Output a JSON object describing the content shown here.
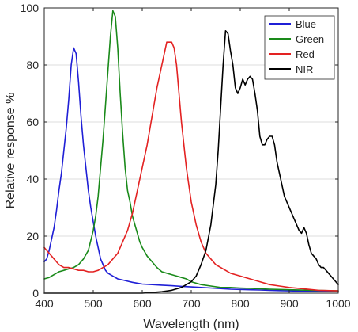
{
  "chart_data": {
    "type": "line",
    "xlabel": "Wavelength (nm)",
    "ylabel": "Relative response %",
    "xlim": [
      400,
      1000
    ],
    "ylim": [
      0,
      100
    ],
    "xticks": [
      400,
      500,
      600,
      700,
      800,
      900,
      1000
    ],
    "yticks": [
      0,
      20,
      40,
      60,
      80,
      100
    ],
    "grid": "horizontal",
    "legend_position": "top-right",
    "series": [
      {
        "name": "Blue",
        "color": "#1f1fd6",
        "points": [
          [
            400,
            11
          ],
          [
            405,
            12
          ],
          [
            410,
            15
          ],
          [
            415,
            19
          ],
          [
            420,
            23
          ],
          [
            425,
            29
          ],
          [
            430,
            36
          ],
          [
            435,
            42
          ],
          [
            440,
            50
          ],
          [
            445,
            58
          ],
          [
            450,
            68
          ],
          [
            455,
            80
          ],
          [
            460,
            86
          ],
          [
            465,
            84
          ],
          [
            470,
            74
          ],
          [
            475,
            62
          ],
          [
            480,
            52
          ],
          [
            485,
            44
          ],
          [
            490,
            36
          ],
          [
            495,
            30
          ],
          [
            500,
            25
          ],
          [
            505,
            20
          ],
          [
            510,
            16
          ],
          [
            515,
            12
          ],
          [
            520,
            10
          ],
          [
            525,
            8
          ],
          [
            530,
            7
          ],
          [
            540,
            6
          ],
          [
            550,
            5
          ],
          [
            560,
            4.6
          ],
          [
            570,
            4.2
          ],
          [
            580,
            3.8
          ],
          [
            590,
            3.5
          ],
          [
            600,
            3.2
          ],
          [
            620,
            3
          ],
          [
            640,
            2.8
          ],
          [
            660,
            2.6
          ],
          [
            680,
            2.4
          ],
          [
            700,
            2.2
          ],
          [
            720,
            2
          ],
          [
            740,
            1.8
          ],
          [
            760,
            1.6
          ],
          [
            780,
            1.4
          ],
          [
            800,
            1.3
          ],
          [
            820,
            1.2
          ],
          [
            840,
            1.1
          ],
          [
            860,
            1
          ],
          [
            880,
            0.9
          ],
          [
            900,
            0.8
          ],
          [
            930,
            0.7
          ],
          [
            960,
            0.6
          ],
          [
            1000,
            0.5
          ]
        ]
      },
      {
        "name": "Green",
        "color": "#1a8a1a",
        "points": [
          [
            400,
            5
          ],
          [
            410,
            5.5
          ],
          [
            420,
            6.5
          ],
          [
            430,
            7.5
          ],
          [
            440,
            8
          ],
          [
            450,
            8.5
          ],
          [
            460,
            9
          ],
          [
            470,
            10
          ],
          [
            480,
            12
          ],
          [
            490,
            15
          ],
          [
            500,
            22
          ],
          [
            505,
            27
          ],
          [
            510,
            34
          ],
          [
            515,
            44
          ],
          [
            520,
            54
          ],
          [
            525,
            66
          ],
          [
            530,
            78
          ],
          [
            535,
            90
          ],
          [
            540,
            99
          ],
          [
            545,
            97
          ],
          [
            550,
            86
          ],
          [
            555,
            70
          ],
          [
            560,
            56
          ],
          [
            565,
            44
          ],
          [
            570,
            36
          ],
          [
            575,
            32
          ],
          [
            580,
            27
          ],
          [
            585,
            24
          ],
          [
            590,
            21
          ],
          [
            595,
            18
          ],
          [
            600,
            16
          ],
          [
            610,
            13
          ],
          [
            620,
            11
          ],
          [
            630,
            9
          ],
          [
            640,
            7.5
          ],
          [
            650,
            7
          ],
          [
            660,
            6.5
          ],
          [
            670,
            6
          ],
          [
            680,
            5.5
          ],
          [
            690,
            5
          ],
          [
            700,
            4
          ],
          [
            720,
            3
          ],
          [
            740,
            2.5
          ],
          [
            760,
            2
          ],
          [
            780,
            2
          ],
          [
            800,
            1.8
          ],
          [
            830,
            1.6
          ],
          [
            860,
            1.4
          ],
          [
            900,
            1.2
          ],
          [
            950,
            1
          ],
          [
            1000,
            0.8
          ]
        ]
      },
      {
        "name": "Red",
        "color": "#e32222",
        "points": [
          [
            400,
            16
          ],
          [
            410,
            14
          ],
          [
            420,
            12
          ],
          [
            430,
            10
          ],
          [
            440,
            9
          ],
          [
            450,
            9
          ],
          [
            460,
            8.5
          ],
          [
            470,
            8
          ],
          [
            480,
            8
          ],
          [
            490,
            7.5
          ],
          [
            500,
            7.5
          ],
          [
            510,
            8
          ],
          [
            520,
            9
          ],
          [
            530,
            10
          ],
          [
            540,
            12
          ],
          [
            550,
            14
          ],
          [
            560,
            18
          ],
          [
            570,
            22
          ],
          [
            580,
            28
          ],
          [
            590,
            36
          ],
          [
            600,
            44
          ],
          [
            610,
            52
          ],
          [
            620,
            62
          ],
          [
            630,
            72
          ],
          [
            640,
            80
          ],
          [
            645,
            84
          ],
          [
            650,
            88
          ],
          [
            660,
            88
          ],
          [
            665,
            86
          ],
          [
            670,
            80
          ],
          [
            675,
            70
          ],
          [
            680,
            60
          ],
          [
            690,
            44
          ],
          [
            700,
            32
          ],
          [
            710,
            24
          ],
          [
            720,
            18
          ],
          [
            730,
            14
          ],
          [
            740,
            12
          ],
          [
            750,
            10
          ],
          [
            760,
            9
          ],
          [
            770,
            8
          ],
          [
            780,
            7
          ],
          [
            790,
            6.5
          ],
          [
            800,
            6
          ],
          [
            820,
            5
          ],
          [
            840,
            4
          ],
          [
            860,
            3
          ],
          [
            880,
            2.5
          ],
          [
            900,
            2
          ],
          [
            930,
            1.5
          ],
          [
            960,
            1
          ],
          [
            1000,
            0.8
          ]
        ]
      },
      {
        "name": "NIR",
        "color": "#000000",
        "points": [
          [
            400,
            0
          ],
          [
            600,
            0
          ],
          [
            640,
            0.5
          ],
          [
            660,
            1
          ],
          [
            680,
            2
          ],
          [
            700,
            4
          ],
          [
            710,
            6
          ],
          [
            720,
            10
          ],
          [
            730,
            15
          ],
          [
            740,
            24
          ],
          [
            750,
            38
          ],
          [
            755,
            50
          ],
          [
            760,
            65
          ],
          [
            765,
            80
          ],
          [
            770,
            92
          ],
          [
            775,
            91
          ],
          [
            780,
            85
          ],
          [
            785,
            80
          ],
          [
            790,
            72
          ],
          [
            795,
            70
          ],
          [
            800,
            72
          ],
          [
            805,
            75
          ],
          [
            810,
            73
          ],
          [
            815,
            75
          ],
          [
            820,
            76
          ],
          [
            825,
            75
          ],
          [
            830,
            70
          ],
          [
            835,
            64
          ],
          [
            840,
            55
          ],
          [
            845,
            52
          ],
          [
            850,
            52
          ],
          [
            855,
            54
          ],
          [
            860,
            55
          ],
          [
            865,
            55
          ],
          [
            870,
            52
          ],
          [
            875,
            46
          ],
          [
            880,
            42
          ],
          [
            885,
            38
          ],
          [
            890,
            34
          ],
          [
            895,
            32
          ],
          [
            900,
            30
          ],
          [
            905,
            28
          ],
          [
            910,
            26
          ],
          [
            915,
            24
          ],
          [
            920,
            22
          ],
          [
            925,
            21
          ],
          [
            930,
            23
          ],
          [
            935,
            21
          ],
          [
            940,
            17
          ],
          [
            945,
            14
          ],
          [
            950,
            13
          ],
          [
            955,
            12
          ],
          [
            960,
            10
          ],
          [
            965,
            9
          ],
          [
            970,
            9
          ],
          [
            975,
            8
          ],
          [
            980,
            7
          ],
          [
            985,
            6
          ],
          [
            990,
            5
          ],
          [
            995,
            4
          ],
          [
            1000,
            3
          ]
        ]
      }
    ]
  }
}
